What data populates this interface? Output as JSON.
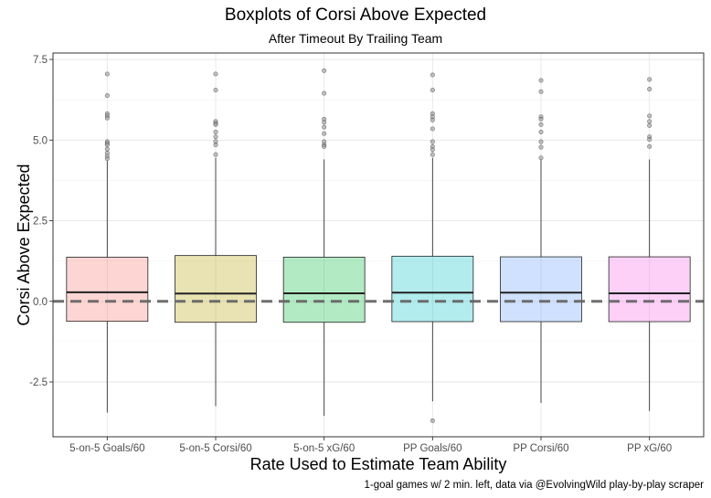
{
  "chart_data": {
    "type": "boxplot",
    "title": "Boxplots of Corsi Above Expected",
    "subtitle": "After Timeout By Trailing Team",
    "xlabel": "Rate Used to Estimate Team Ability",
    "ylabel": "Corsi Above Expected",
    "caption": "1-goal games w/ 2 min. left, data via @EvolvingWild play-by-play scraper",
    "ylim": [
      -4.2,
      7.7
    ],
    "yticks": [
      -2.5,
      0.0,
      2.5,
      5.0,
      7.5
    ],
    "ytick_labels": [
      "-2.5",
      "0.0",
      "2.5",
      "5.0",
      "7.5"
    ],
    "reference_line": {
      "y": 0,
      "style": "dashed",
      "color": "#666666"
    },
    "grid": true,
    "categories": [
      "5-on-5 Goals/60",
      "5-on-5 Corsi/60",
      "5-on-5 xG/60",
      "PP Goals/60",
      "PP Corsi/60",
      "PP xG/60"
    ],
    "boxes": [
      {
        "q1": -0.62,
        "median": 0.28,
        "q3": 1.37,
        "whisker_low": -3.45,
        "whisker_high": 4.35,
        "color": "#F8766D",
        "outliers": [
          7.05,
          6.38,
          5.82,
          5.75,
          5.68,
          4.95,
          4.9,
          4.85,
          4.72,
          4.6,
          4.5,
          4.42
        ]
      },
      {
        "q1": -0.65,
        "median": 0.24,
        "q3": 1.42,
        "whisker_low": -3.25,
        "whisker_high": 4.45,
        "color": "#B79F00",
        "outliers": [
          7.05,
          6.55,
          5.58,
          5.52,
          5.48,
          5.25,
          5.1,
          4.95,
          4.85,
          4.55
        ]
      },
      {
        "q1": -0.65,
        "median": 0.25,
        "q3": 1.37,
        "whisker_low": -3.55,
        "whisker_high": 4.4,
        "color": "#00BA38",
        "outliers": [
          7.15,
          6.45,
          5.65,
          5.55,
          5.4,
          5.2,
          4.95,
          4.85,
          4.8
        ]
      },
      {
        "q1": -0.63,
        "median": 0.27,
        "q3": 1.4,
        "whisker_low": -3.1,
        "whisker_high": 4.45,
        "color": "#00BFC4",
        "outliers": [
          7.02,
          6.55,
          5.82,
          5.72,
          5.62,
          5.35,
          4.95,
          4.8,
          4.7,
          4.55,
          -3.7
        ]
      },
      {
        "q1": -0.63,
        "median": 0.27,
        "q3": 1.38,
        "whisker_low": -3.15,
        "whisker_high": 4.4,
        "color": "#619CFF",
        "outliers": [
          6.85,
          6.5,
          5.72,
          5.65,
          5.48,
          5.25,
          4.95,
          4.78,
          4.45
        ]
      },
      {
        "q1": -0.63,
        "median": 0.25,
        "q3": 1.38,
        "whisker_low": -3.4,
        "whisker_high": 4.4,
        "color": "#F564E3",
        "outliers": [
          6.88,
          6.58,
          5.75,
          5.58,
          5.45,
          5.1,
          5.02,
          4.8
        ]
      }
    ]
  }
}
